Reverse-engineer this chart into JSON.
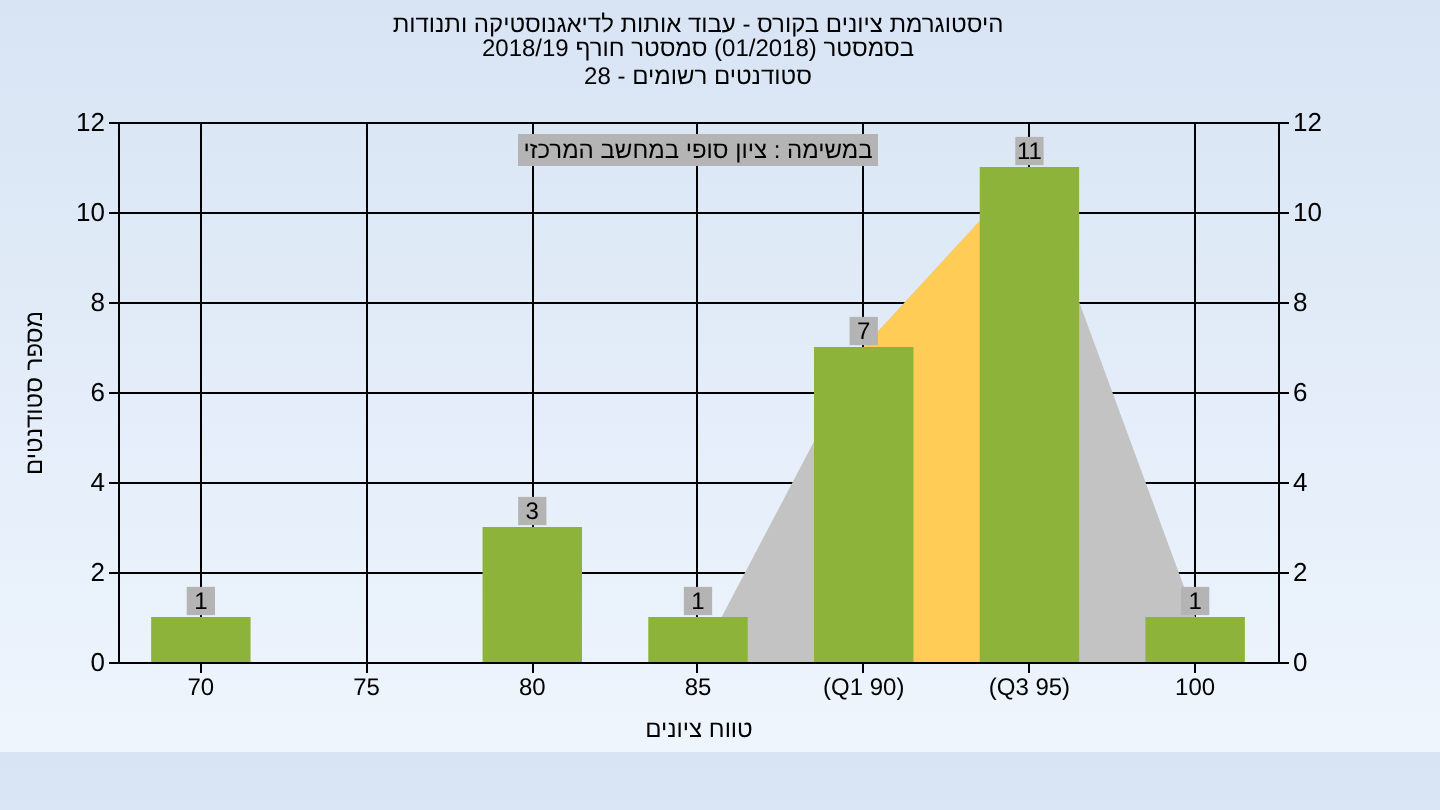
{
  "chart_data": {
    "type": "bar",
    "title": "היסטוגרמת ציונים בקורס - עבוד אותות לדיאגנוסטיקה ותנודות",
    "subtitle": "בסמסטר  (01/2018)  סמסטר חורף 2018/19\nסטודנטים רשומים - 28",
    "xlabel": "טווח ציונים",
    "ylabel": "מספר סטודנטים",
    "annotations": [
      "במשימה : ציון סופי במחשב המרכזי"
    ],
    "categories": [
      "70",
      "75",
      "80",
      "85",
      "(Q1 90)",
      "(Q3 95)",
      "100"
    ],
    "series": [
      {
        "type": "area",
        "color": "#c3c3c3",
        "values": [
          null,
          null,
          null,
          0,
          7,
          11,
          1
        ]
      },
      {
        "type": "area",
        "color": "#ffcc55",
        "values": [
          null,
          null,
          null,
          null,
          7,
          11,
          null
        ]
      },
      {
        "color": "#8db33a",
        "values": [
          1,
          0,
          3,
          1,
          7,
          11,
          1
        ],
        "value_labels": [
          "1",
          null,
          "3",
          "1",
          "7",
          "11",
          "1"
        ]
      }
    ],
    "ylim": [
      0,
      12
    ],
    "yticks": [
      0,
      2,
      4,
      6,
      8,
      10,
      12
    ],
    "y2lim": [
      0,
      12
    ],
    "y2ticks": [
      0,
      2,
      4,
      6,
      8,
      10,
      12
    ],
    "grid": true
  }
}
